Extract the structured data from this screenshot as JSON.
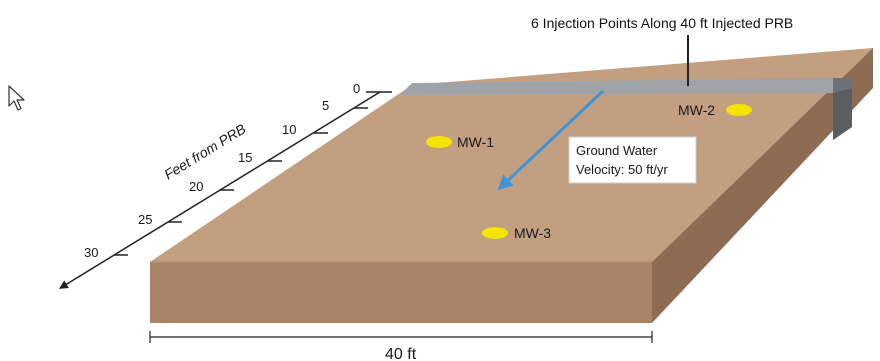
{
  "diagram": {
    "callout_title": "6 Injection Points Along 40 ft Injected PRB",
    "axis": {
      "label": "Feet from PRB",
      "ticks": [
        "0",
        "5",
        "10",
        "15",
        "20",
        "25",
        "30"
      ]
    },
    "wells": [
      {
        "id": "MW-1"
      },
      {
        "id": "MW-2"
      },
      {
        "id": "MW-3"
      }
    ],
    "flow_label": {
      "line1": "Ground Water",
      "line2": "Velocity: 50 ft/yr"
    },
    "width_label": "40 ft",
    "colors": {
      "soil_top": "#c29f80",
      "soil_front": "#a98468",
      "soil_side": "#8e6c53",
      "prb_strip": "#9fa3a8",
      "prb_face": "#6e7278",
      "well": "#f5e400",
      "flow_arrow": "#3d95d8"
    },
    "icons": {
      "cursor": "mouse-pointer-icon"
    }
  }
}
